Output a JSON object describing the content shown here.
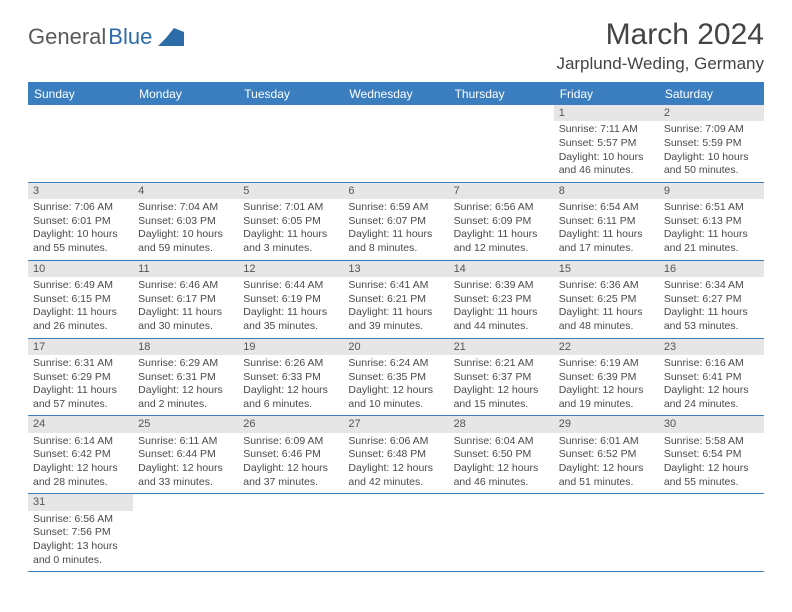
{
  "logo": {
    "part1": "General",
    "part2": "Blue"
  },
  "title": "March 2024",
  "location": "Jarplund-Weding, Germany",
  "colors": {
    "header_bg": "#3a7ebf",
    "header_text": "#ffffff",
    "border": "#3a7ebf",
    "daynum_bg": "#e6e6e6",
    "text": "#4a4a4a",
    "logo_gray": "#5a5a5a",
    "logo_blue": "#2c6ca8"
  },
  "day_names": [
    "Sunday",
    "Monday",
    "Tuesday",
    "Wednesday",
    "Thursday",
    "Friday",
    "Saturday"
  ],
  "weeks": [
    [
      null,
      null,
      null,
      null,
      null,
      {
        "n": "1",
        "sr": "7:11 AM",
        "ss": "5:57 PM",
        "dl": "10 hours and 46 minutes."
      },
      {
        "n": "2",
        "sr": "7:09 AM",
        "ss": "5:59 PM",
        "dl": "10 hours and 50 minutes."
      }
    ],
    [
      {
        "n": "3",
        "sr": "7:06 AM",
        "ss": "6:01 PM",
        "dl": "10 hours and 55 minutes."
      },
      {
        "n": "4",
        "sr": "7:04 AM",
        "ss": "6:03 PM",
        "dl": "10 hours and 59 minutes."
      },
      {
        "n": "5",
        "sr": "7:01 AM",
        "ss": "6:05 PM",
        "dl": "11 hours and 3 minutes."
      },
      {
        "n": "6",
        "sr": "6:59 AM",
        "ss": "6:07 PM",
        "dl": "11 hours and 8 minutes."
      },
      {
        "n": "7",
        "sr": "6:56 AM",
        "ss": "6:09 PM",
        "dl": "11 hours and 12 minutes."
      },
      {
        "n": "8",
        "sr": "6:54 AM",
        "ss": "6:11 PM",
        "dl": "11 hours and 17 minutes."
      },
      {
        "n": "9",
        "sr": "6:51 AM",
        "ss": "6:13 PM",
        "dl": "11 hours and 21 minutes."
      }
    ],
    [
      {
        "n": "10",
        "sr": "6:49 AM",
        "ss": "6:15 PM",
        "dl": "11 hours and 26 minutes."
      },
      {
        "n": "11",
        "sr": "6:46 AM",
        "ss": "6:17 PM",
        "dl": "11 hours and 30 minutes."
      },
      {
        "n": "12",
        "sr": "6:44 AM",
        "ss": "6:19 PM",
        "dl": "11 hours and 35 minutes."
      },
      {
        "n": "13",
        "sr": "6:41 AM",
        "ss": "6:21 PM",
        "dl": "11 hours and 39 minutes."
      },
      {
        "n": "14",
        "sr": "6:39 AM",
        "ss": "6:23 PM",
        "dl": "11 hours and 44 minutes."
      },
      {
        "n": "15",
        "sr": "6:36 AM",
        "ss": "6:25 PM",
        "dl": "11 hours and 48 minutes."
      },
      {
        "n": "16",
        "sr": "6:34 AM",
        "ss": "6:27 PM",
        "dl": "11 hours and 53 minutes."
      }
    ],
    [
      {
        "n": "17",
        "sr": "6:31 AM",
        "ss": "6:29 PM",
        "dl": "11 hours and 57 minutes."
      },
      {
        "n": "18",
        "sr": "6:29 AM",
        "ss": "6:31 PM",
        "dl": "12 hours and 2 minutes."
      },
      {
        "n": "19",
        "sr": "6:26 AM",
        "ss": "6:33 PM",
        "dl": "12 hours and 6 minutes."
      },
      {
        "n": "20",
        "sr": "6:24 AM",
        "ss": "6:35 PM",
        "dl": "12 hours and 10 minutes."
      },
      {
        "n": "21",
        "sr": "6:21 AM",
        "ss": "6:37 PM",
        "dl": "12 hours and 15 minutes."
      },
      {
        "n": "22",
        "sr": "6:19 AM",
        "ss": "6:39 PM",
        "dl": "12 hours and 19 minutes."
      },
      {
        "n": "23",
        "sr": "6:16 AM",
        "ss": "6:41 PM",
        "dl": "12 hours and 24 minutes."
      }
    ],
    [
      {
        "n": "24",
        "sr": "6:14 AM",
        "ss": "6:42 PM",
        "dl": "12 hours and 28 minutes."
      },
      {
        "n": "25",
        "sr": "6:11 AM",
        "ss": "6:44 PM",
        "dl": "12 hours and 33 minutes."
      },
      {
        "n": "26",
        "sr": "6:09 AM",
        "ss": "6:46 PM",
        "dl": "12 hours and 37 minutes."
      },
      {
        "n": "27",
        "sr": "6:06 AM",
        "ss": "6:48 PM",
        "dl": "12 hours and 42 minutes."
      },
      {
        "n": "28",
        "sr": "6:04 AM",
        "ss": "6:50 PM",
        "dl": "12 hours and 46 minutes."
      },
      {
        "n": "29",
        "sr": "6:01 AM",
        "ss": "6:52 PM",
        "dl": "12 hours and 51 minutes."
      },
      {
        "n": "30",
        "sr": "5:58 AM",
        "ss": "6:54 PM",
        "dl": "12 hours and 55 minutes."
      }
    ],
    [
      {
        "n": "31",
        "sr": "6:56 AM",
        "ss": "7:56 PM",
        "dl": "13 hours and 0 minutes."
      },
      null,
      null,
      null,
      null,
      null,
      null
    ]
  ],
  "labels": {
    "sunrise": "Sunrise:",
    "sunset": "Sunset:",
    "daylight": "Daylight:"
  }
}
